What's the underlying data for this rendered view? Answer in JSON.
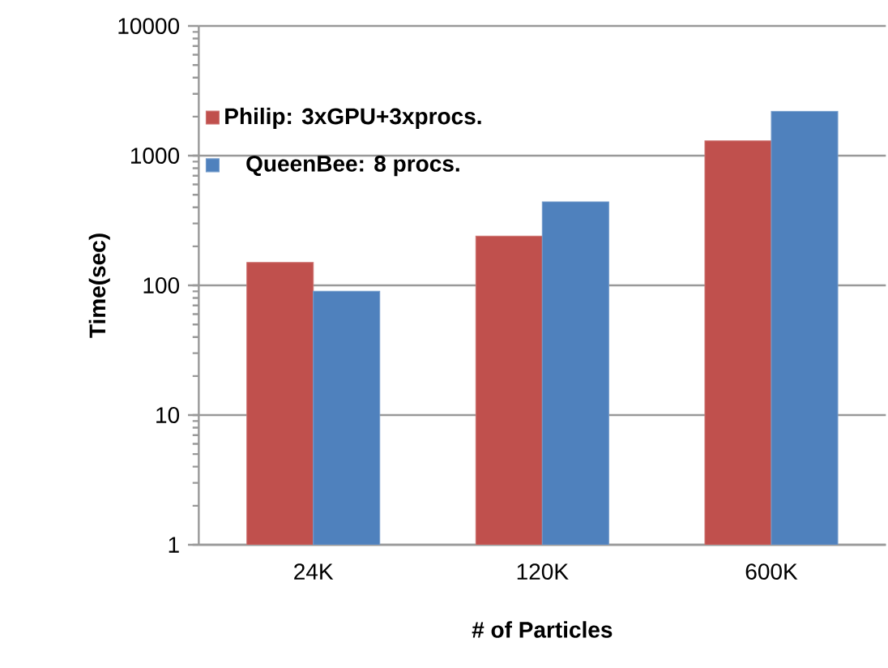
{
  "chart_data": {
    "type": "bar",
    "xlabel": "# of Particles",
    "ylabel": "Time(sec)",
    "categories": [
      "24K",
      "120K",
      "600K"
    ],
    "series": [
      {
        "name": "Philip: 3xGPU+3xprocs.",
        "color": "#c0504d",
        "values": [
          150,
          240,
          1300
        ]
      },
      {
        "name": "QueenBee: 8 procs.",
        "color": "#4f81bd",
        "values": [
          90,
          440,
          2200
        ]
      }
    ],
    "log": "y",
    "ylim": [
      1,
      10000
    ],
    "yticks": [
      1,
      10,
      100,
      1000,
      10000
    ],
    "grid": "y",
    "legend": "top left"
  }
}
